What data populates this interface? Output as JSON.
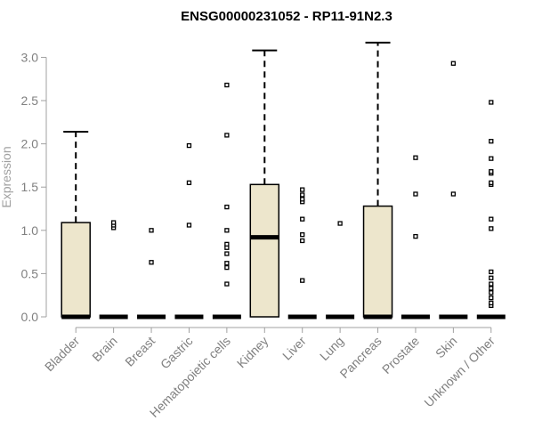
{
  "chart_data": {
    "type": "boxplot",
    "title": "ENSG00000231052 - RP11-91N2.3",
    "xlabel": "",
    "ylabel": "Expression",
    "ylim": [
      0,
      3.2
    ],
    "yticks": [
      "0.0",
      "0.5",
      "1.0",
      "1.5",
      "2.0",
      "2.5",
      "3.0"
    ],
    "box_fill": "#ede6cc",
    "categories": [
      "Bladder",
      "Brain",
      "Breast",
      "Gastric",
      "Hematopoietic cells",
      "Kidney",
      "Liver",
      "Lung",
      "Pancreas",
      "Prostate",
      "Skin",
      "Unknown / Other"
    ],
    "boxes": [
      {
        "q1": 0,
        "median": 0,
        "q3": 1.09,
        "whisker_low": 0,
        "whisker_high": 2.14,
        "outliers": []
      },
      {
        "q1": 0,
        "median": 0,
        "q3": 0,
        "whisker_low": 0,
        "whisker_high": 0,
        "outliers": [
          1.03,
          1.06,
          1.09
        ]
      },
      {
        "q1": 0,
        "median": 0,
        "q3": 0,
        "whisker_low": 0,
        "whisker_high": 0,
        "outliers": [
          0.63,
          1.0
        ]
      },
      {
        "q1": 0,
        "median": 0,
        "q3": 0,
        "whisker_low": 0,
        "whisker_high": 0,
        "outliers": [
          1.06,
          1.55,
          1.98
        ]
      },
      {
        "q1": 0,
        "median": 0,
        "q3": 0,
        "whisker_low": 0,
        "whisker_high": 0,
        "outliers": [
          0.38,
          0.57,
          0.62,
          0.73,
          0.8,
          0.84,
          1.0,
          1.27,
          2.1,
          2.68
        ]
      },
      {
        "q1": 0,
        "median": 0.92,
        "q3": 1.53,
        "whisker_low": 0,
        "whisker_high": 3.08,
        "outliers": []
      },
      {
        "q1": 0,
        "median": 0,
        "q3": 0,
        "whisker_low": 0,
        "whisker_high": 0,
        "outliers": [
          0.42,
          0.88,
          0.95,
          1.13,
          1.33,
          1.36,
          1.41,
          1.47
        ]
      },
      {
        "q1": 0,
        "median": 0,
        "q3": 0,
        "whisker_low": 0,
        "whisker_high": 0,
        "outliers": [
          1.08
        ]
      },
      {
        "q1": 0,
        "median": 0,
        "q3": 1.28,
        "whisker_low": 0,
        "whisker_high": 3.17,
        "outliers": []
      },
      {
        "q1": 0,
        "median": 0,
        "q3": 0,
        "whisker_low": 0,
        "whisker_high": 0,
        "outliers": [
          0.93,
          1.42,
          1.84
        ]
      },
      {
        "q1": 0,
        "median": 0,
        "q3": 0,
        "whisker_low": 0,
        "whisker_high": 0,
        "outliers": [
          1.42,
          2.93
        ]
      },
      {
        "q1": 0,
        "median": 0,
        "q3": 0,
        "whisker_low": 0,
        "whisker_high": 0,
        "outliers": [
          0.13,
          0.16,
          0.22,
          0.28,
          0.33,
          0.38,
          0.45,
          0.52,
          1.02,
          1.13,
          1.53,
          1.55,
          1.66,
          1.68,
          1.83,
          2.03,
          2.48
        ]
      }
    ]
  }
}
